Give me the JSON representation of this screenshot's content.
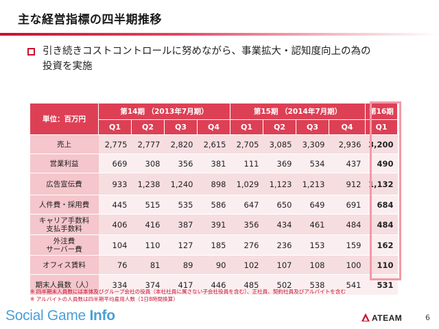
{
  "slide": {
    "title": "主な経営指標の四半期推移",
    "bullet_line1": "引き続きコストコントロールに努めながら、事業拡大・認知度向上の為の",
    "bullet_line2": "投資を実施",
    "page_number": "6"
  },
  "table": {
    "unit": "単位：百万円",
    "periods": [
      "第14期 （2013年7月期）",
      "第15期 （2014年7月期）",
      "第16期"
    ],
    "quarters": [
      "Q1",
      "Q2",
      "Q3",
      "Q4",
      "Q1",
      "Q2",
      "Q3",
      "Q4",
      "Q1"
    ],
    "rows": [
      {
        "label": "売上",
        "values": [
          "2,775",
          "2,777",
          "2,820",
          "2,615",
          "2,705",
          "3,085",
          "3,309",
          "2,936",
          "3,200"
        ]
      },
      {
        "label": "営業利益",
        "values": [
          "669",
          "308",
          "356",
          "381",
          "111",
          "369",
          "534",
          "437",
          "490"
        ]
      },
      {
        "label": "広告宣伝費",
        "values": [
          "933",
          "1,238",
          "1,240",
          "898",
          "1,029",
          "1,123",
          "1,213",
          "912",
          "1,132"
        ]
      },
      {
        "label": "人件費・採用費",
        "values": [
          "445",
          "515",
          "535",
          "586",
          "647",
          "650",
          "649",
          "691",
          "684"
        ]
      },
      {
        "label": "キャリア手数料",
        "label2": "支払手数料",
        "values": [
          "406",
          "416",
          "387",
          "391",
          "356",
          "434",
          "461",
          "484",
          "484"
        ]
      },
      {
        "label": "外注費",
        "label2": "サーバー費",
        "values": [
          "104",
          "110",
          "127",
          "185",
          "276",
          "236",
          "153",
          "159",
          "162"
        ]
      },
      {
        "label": "オフィス賃料",
        "values": [
          "76",
          "81",
          "89",
          "90",
          "102",
          "107",
          "108",
          "100",
          "110"
        ]
      },
      {
        "label": "期末人員数（人）",
        "values": [
          "334",
          "374",
          "417",
          "446",
          "485",
          "502",
          "538",
          "541",
          "531"
        ]
      }
    ]
  },
  "notes": {
    "line1": "※ 四半期末人員数には本体及びグループ会社の役員（本社社員に属さない子会社役員を含む）、正社員、契約社員及びアルバイトを含む",
    "line2": "※ アルバイトの人員数は四半期平均雇用人数（1日8時間換算）"
  },
  "footer": {
    "brand_regular": "Social Game ",
    "brand_bold": "Info",
    "company": "ATEAM"
  },
  "colors": {
    "accent": "#c8102e",
    "header": "#dd4055",
    "label_bg": "#f5c6cc",
    "brand": "#4a9fd6"
  }
}
